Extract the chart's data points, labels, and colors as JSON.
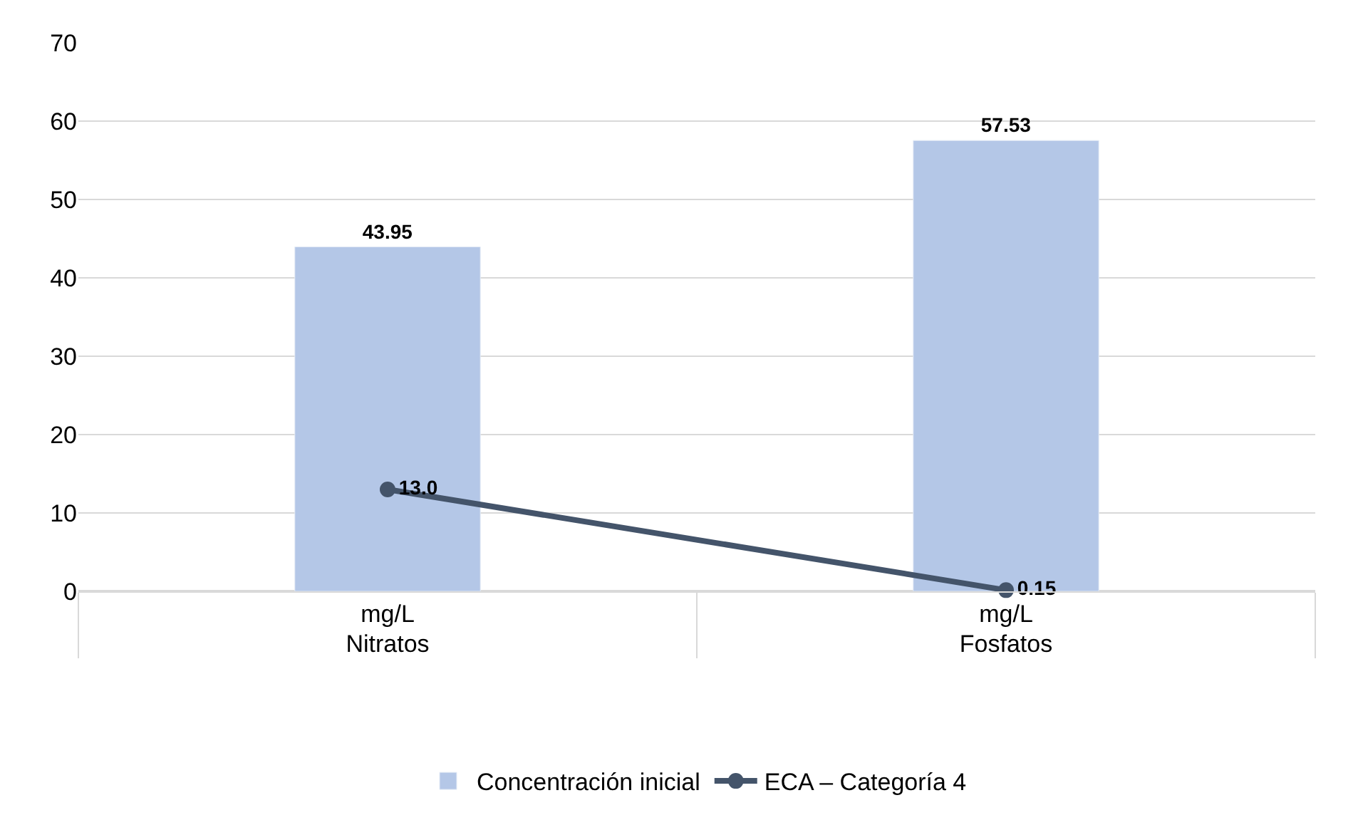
{
  "chart_data": {
    "type": "bar",
    "categories": [
      "mg/L\nNitratos",
      "mg/L\nFosfatos"
    ],
    "series": [
      {
        "name": "Concentración inicial",
        "color": "#b4c7e7",
        "values": [
          43.95,
          57.53
        ],
        "value_labels": [
          "43.95",
          "57.53"
        ]
      },
      {
        "name": "ECA – Categoría 4",
        "type": "line",
        "color": "#44546a",
        "values": [
          13.0,
          0.15
        ],
        "value_labels": [
          "13.0",
          "0.15"
        ],
        "marker": "circle",
        "line_style": "solid"
      }
    ],
    "ylim": [
      0,
      70
    ],
    "yticks": [
      0,
      10,
      20,
      30,
      40,
      50,
      60,
      70
    ],
    "grid": "y",
    "legend": "bottom"
  }
}
